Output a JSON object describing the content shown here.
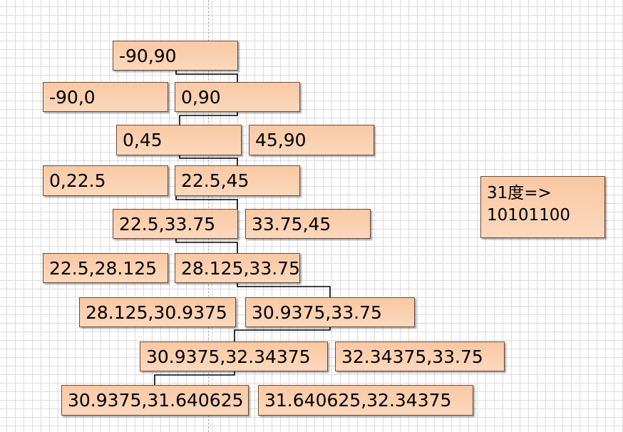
{
  "colors": {
    "box_fill": "#f9c8a3",
    "box_border": "#6f4c35",
    "connector": "#000000",
    "grid": "#dcdcdc"
  },
  "nodes": {
    "root": "-90,90",
    "l1_left": "-90,0",
    "l1_right": "0,90",
    "l2_left": "0,45",
    "l2_right": "45,90",
    "l3_left": "0,22.5",
    "l3_right": "22.5,45",
    "l4_left": "22.5,33.75",
    "l4_right": "33.75,45",
    "l5_left": "22.5,28.125",
    "l5_right": "28.125,33.75",
    "l6_left": "28.125,30.9375",
    "l6_right": "30.9375,33.75",
    "l7_left": "30.9375,32.34375",
    "l7_right": "32.34375,33.75",
    "l8_left": "30.9375,31.640625",
    "l8_right": "31.640625,32.34375"
  },
  "note": {
    "line1": "31度=>",
    "line2": "10101100"
  }
}
